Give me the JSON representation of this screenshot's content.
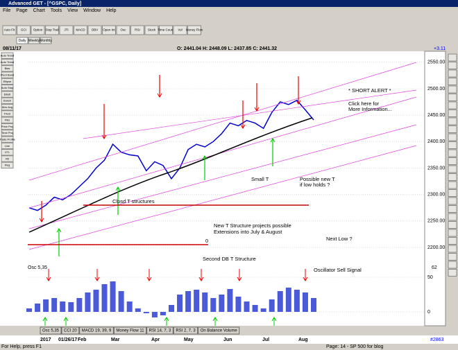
{
  "window": {
    "title": "Advanced GET - [^GSPC, Daily]",
    "menu": [
      "File",
      "Page",
      "Chart",
      "Tools",
      "View",
      "Window",
      "Help"
    ]
  },
  "toolbar": [
    "Auto Fit",
    "GCI",
    "Option",
    "Stop Trail",
    "JTI",
    "MACD",
    "OBV",
    "Open Int",
    "Osc",
    "RSI",
    "Stock",
    "Time Count",
    "Vol",
    "Money Flow"
  ],
  "tabs": [
    "Daily",
    "Weekly",
    "Monthly"
  ],
  "sidebar": [
    "Auto Trend",
    "Auto Trend",
    "Bias",
    "Pivot Band",
    "Ellipse",
    "Auto Stop",
    "Elliott",
    "Dunch",
    "Mov Avg",
    "Pivot",
    "Fibs",
    "Price Proj",
    "Time Proj",
    "Trade Profile",
    "Line",
    "XTL",
    "Fill",
    "Reg"
  ],
  "header": {
    "date": "08/11/17",
    "ohlc": "O: 2441.04    H: 2448.09    L: 2437.85    C: 2441.32",
    "change": "+3.11"
  },
  "chart_data": [
    {
      "type": "line",
      "color": "#0000cc",
      "values": [
        2275,
        2270,
        2280,
        2295,
        2290,
        2300,
        2315,
        2330,
        2350,
        2365,
        2395,
        2380,
        2375,
        2373,
        2345,
        2362,
        2355,
        2330,
        2350,
        2385,
        2395,
        2390,
        2400,
        2415,
        2435,
        2430,
        2440,
        2435,
        2425,
        2455,
        2475,
        2470,
        2478,
        2460,
        2441
      ],
      "ylim": [
        2170,
        2568
      ],
      "yticks": [
        {
          "value": 2200,
          "label": "2200.00"
        },
        {
          "value": 2250,
          "label": "2250.00"
        },
        {
          "value": 2300,
          "label": "2300.00"
        },
        {
          "value": 2350,
          "label": "2350.00"
        },
        {
          "value": 2400,
          "label": "2400.00"
        },
        {
          "value": 2450,
          "label": "2450.00"
        },
        {
          "value": 2500,
          "label": "2500.00"
        },
        {
          "value": 2550,
          "label": "2550.00"
        }
      ],
      "annotations": [
        "* SHORT ALERT *",
        "Click here for",
        "More Information...",
        "Small T",
        "Possible new T",
        "if low holds ?",
        "Clpsd T structures",
        "New T Structure projects possible",
        "Extensions into July & August",
        "0",
        "Second DB T Structure",
        "Next Low ?"
      ]
    },
    {
      "type": "bar",
      "title": "Osc 5,35",
      "color": "#4a5ad8",
      "readout": "62",
      "values": [
        5,
        12,
        18,
        20,
        15,
        14,
        20,
        28,
        32,
        40,
        44,
        30,
        15,
        5,
        -2,
        -8,
        -5,
        10,
        25,
        30,
        32,
        28,
        20,
        25,
        33,
        22,
        15,
        10,
        5,
        18,
        30,
        35,
        32,
        28,
        20
      ],
      "ylim": [
        -20,
        68
      ],
      "yticks": [
        0,
        50
      ],
      "annotations": [
        "Oscillator Sell Signal"
      ]
    }
  ],
  "indicator_tabs": [
    "Osc 5,35",
    "CCI 20",
    "MACD 19, 39, 9",
    "Money Flow 11",
    "RSI 14, 7, 3",
    "RSI 2, 7, 3",
    "On Balance Volume"
  ],
  "date_axis": {
    "labels": [
      "2017",
      "01/26/17",
      "Feb",
      "Mar",
      "Apr",
      "May",
      "Jun",
      "Jul",
      "Aug"
    ],
    "count": "#2863"
  },
  "status": {
    "help": "For Help, press F1",
    "page": "Page: 14 - SP 500 for blog"
  }
}
